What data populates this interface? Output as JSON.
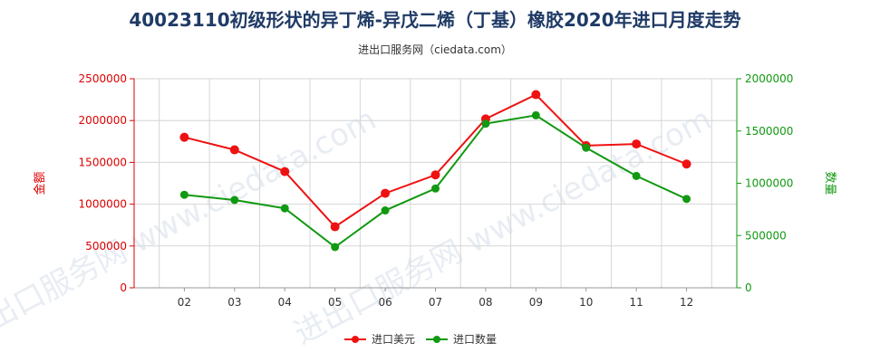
{
  "chart_data": {
    "type": "line",
    "title": "40023110初级形状的异丁烯-异戊二烯（丁基）橡胶2020年进口月度走势",
    "subtitle": "进出口服务网（ciedata.com）",
    "watermark": "进出口服务网 www.ciedata.com",
    "categories": [
      "02",
      "03",
      "04",
      "05",
      "06",
      "07",
      "08",
      "09",
      "10",
      "11",
      "12"
    ],
    "y_left": {
      "label": "金额",
      "range": [
        0,
        2500000
      ],
      "ticks": [
        0,
        500000,
        1000000,
        1500000,
        2000000,
        2500000
      ],
      "tick_labels": [
        "0",
        "500000",
        "1000000",
        "1500000",
        "2000000",
        "2500000"
      ],
      "color": "#dd0000"
    },
    "y_right": {
      "label": "数量",
      "range": [
        0,
        2000000
      ],
      "ticks": [
        0,
        500000,
        1000000,
        1500000,
        2000000
      ],
      "tick_labels": [
        "0",
        "500000",
        "1000000",
        "1500000",
        "2000000"
      ],
      "color": "#119911"
    },
    "series": [
      {
        "name": "进口美元",
        "axis": "left",
        "color": "#ee1111",
        "values": [
          1800000,
          1650000,
          1390000,
          730000,
          1130000,
          1350000,
          2020000,
          2310000,
          1700000,
          1720000,
          1480000
        ]
      },
      {
        "name": "进口数量",
        "axis": "right",
        "color": "#119911",
        "values": [
          890000,
          840000,
          760000,
          390000,
          740000,
          950000,
          1570000,
          1650000,
          1340000,
          1070000,
          850000
        ]
      }
    ],
    "grid": true,
    "legend_position": "bottom-center"
  }
}
